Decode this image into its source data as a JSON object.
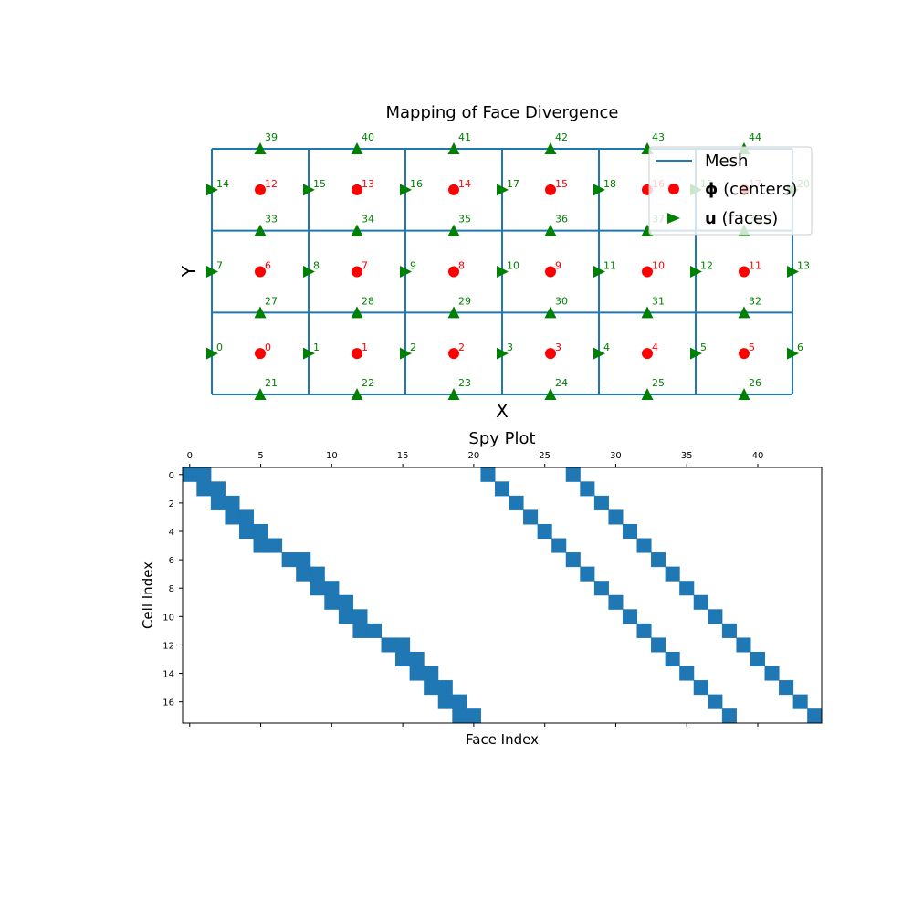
{
  "chart_data": [
    {
      "type": "scatter",
      "title": "Mapping of Face Divergence",
      "xlabel": "X",
      "ylabel": "Y",
      "mesh": {
        "cols": 6,
        "rows": 3
      },
      "legend": {
        "placement": "top-right",
        "entries": [
          {
            "label": "Mesh",
            "bold": "",
            "rest": "Mesh",
            "marker": "line"
          },
          {
            "label": "ϕ (centers)",
            "bold": "ϕ",
            "rest": " (centers)",
            "marker": "circle"
          },
          {
            "label": "u (faces)",
            "bold": "u",
            "rest": " (faces)",
            "marker": "triangle-right"
          }
        ]
      },
      "series": [
        {
          "name": "ϕ (centers)",
          "marker": "circle",
          "points": [
            {
              "x": 0.5,
              "y": 0.5,
              "label": "0"
            },
            {
              "x": 1.5,
              "y": 0.5,
              "label": "1"
            },
            {
              "x": 2.5,
              "y": 0.5,
              "label": "2"
            },
            {
              "x": 3.5,
              "y": 0.5,
              "label": "3"
            },
            {
              "x": 4.5,
              "y": 0.5,
              "label": "4"
            },
            {
              "x": 5.5,
              "y": 0.5,
              "label": "5"
            },
            {
              "x": 0.5,
              "y": 1.5,
              "label": "6"
            },
            {
              "x": 1.5,
              "y": 1.5,
              "label": "7"
            },
            {
              "x": 2.5,
              "y": 1.5,
              "label": "8"
            },
            {
              "x": 3.5,
              "y": 1.5,
              "label": "9"
            },
            {
              "x": 4.5,
              "y": 1.5,
              "label": "10"
            },
            {
              "x": 5.5,
              "y": 1.5,
              "label": "11"
            },
            {
              "x": 0.5,
              "y": 2.5,
              "label": "12"
            },
            {
              "x": 1.5,
              "y": 2.5,
              "label": "13"
            },
            {
              "x": 2.5,
              "y": 2.5,
              "label": "14"
            },
            {
              "x": 3.5,
              "y": 2.5,
              "label": "15"
            },
            {
              "x": 4.5,
              "y": 2.5,
              "label": "16"
            },
            {
              "x": 5.5,
              "y": 2.5,
              "label": "17"
            }
          ]
        },
        {
          "name": "u (faces)",
          "marker": "triangle-right",
          "points": [
            {
              "x": 0,
              "y": 0.5,
              "label": "0"
            },
            {
              "x": 1,
              "y": 0.5,
              "label": "1"
            },
            {
              "x": 2,
              "y": 0.5,
              "label": "2"
            },
            {
              "x": 3,
              "y": 0.5,
              "label": "3"
            },
            {
              "x": 4,
              "y": 0.5,
              "label": "4"
            },
            {
              "x": 5,
              "y": 0.5,
              "label": "5"
            },
            {
              "x": 6,
              "y": 0.5,
              "label": "6"
            },
            {
              "x": 0,
              "y": 1.5,
              "label": "7"
            },
            {
              "x": 1,
              "y": 1.5,
              "label": "8"
            },
            {
              "x": 2,
              "y": 1.5,
              "label": "9"
            },
            {
              "x": 3,
              "y": 1.5,
              "label": "10"
            },
            {
              "x": 4,
              "y": 1.5,
              "label": "11"
            },
            {
              "x": 5,
              "y": 1.5,
              "label": "12"
            },
            {
              "x": 6,
              "y": 1.5,
              "label": "13"
            },
            {
              "x": 0,
              "y": 2.5,
              "label": "14"
            },
            {
              "x": 1,
              "y": 2.5,
              "label": "15"
            },
            {
              "x": 2,
              "y": 2.5,
              "label": "16"
            },
            {
              "x": 3,
              "y": 2.5,
              "label": "17"
            },
            {
              "x": 4,
              "y": 2.5,
              "label": "18"
            },
            {
              "x": 5,
              "y": 2.5,
              "label": "19"
            },
            {
              "x": 6,
              "y": 2.5,
              "label": "20"
            }
          ]
        },
        {
          "name": "u (faces) vertical",
          "marker": "triangle-up",
          "points": [
            {
              "x": 0.5,
              "y": 0,
              "label": "21"
            },
            {
              "x": 1.5,
              "y": 0,
              "label": "22"
            },
            {
              "x": 2.5,
              "y": 0,
              "label": "23"
            },
            {
              "x": 3.5,
              "y": 0,
              "label": "24"
            },
            {
              "x": 4.5,
              "y": 0,
              "label": "25"
            },
            {
              "x": 5.5,
              "y": 0,
              "label": "26"
            },
            {
              "x": 0.5,
              "y": 1,
              "label": "27"
            },
            {
              "x": 1.5,
              "y": 1,
              "label": "28"
            },
            {
              "x": 2.5,
              "y": 1,
              "label": "29"
            },
            {
              "x": 3.5,
              "y": 1,
              "label": "30"
            },
            {
              "x": 4.5,
              "y": 1,
              "label": "31"
            },
            {
              "x": 5.5,
              "y": 1,
              "label": "32"
            },
            {
              "x": 0.5,
              "y": 2,
              "label": "33"
            },
            {
              "x": 1.5,
              "y": 2,
              "label": "34"
            },
            {
              "x": 2.5,
              "y": 2,
              "label": "35"
            },
            {
              "x": 3.5,
              "y": 2,
              "label": "36"
            },
            {
              "x": 4.5,
              "y": 2,
              "label": "37"
            },
            {
              "x": 5.5,
              "y": 2,
              "label": "38"
            },
            {
              "x": 0.5,
              "y": 3,
              "label": "39"
            },
            {
              "x": 1.5,
              "y": 3,
              "label": "40"
            },
            {
              "x": 2.5,
              "y": 3,
              "label": "41"
            },
            {
              "x": 3.5,
              "y": 3,
              "label": "42"
            },
            {
              "x": 4.5,
              "y": 3,
              "label": "43"
            },
            {
              "x": 5.5,
              "y": 3,
              "label": "44"
            }
          ]
        }
      ],
      "colors": {
        "mesh": "#1f77b4",
        "centers": "#ff0000",
        "faces": "#008000"
      }
    },
    {
      "type": "heatmap",
      "title": "Spy Plot",
      "xlabel": "Face Index",
      "ylabel": "Cell Index",
      "xlim": [
        -0.5,
        44.5
      ],
      "ylim": [
        17.5,
        -0.5
      ],
      "xticks": [
        0,
        5,
        10,
        15,
        20,
        25,
        30,
        35,
        40
      ],
      "yticks": [
        0,
        2,
        4,
        6,
        8,
        10,
        12,
        14,
        16
      ],
      "color": "#1f77b4",
      "nonzeros": [
        [
          0,
          0
        ],
        [
          0,
          1
        ],
        [
          0,
          21
        ],
        [
          0,
          27
        ],
        [
          1,
          1
        ],
        [
          1,
          2
        ],
        [
          1,
          22
        ],
        [
          1,
          28
        ],
        [
          2,
          2
        ],
        [
          2,
          3
        ],
        [
          2,
          23
        ],
        [
          2,
          29
        ],
        [
          3,
          3
        ],
        [
          3,
          4
        ],
        [
          3,
          24
        ],
        [
          3,
          30
        ],
        [
          4,
          4
        ],
        [
          4,
          5
        ],
        [
          4,
          25
        ],
        [
          4,
          31
        ],
        [
          5,
          5
        ],
        [
          5,
          6
        ],
        [
          5,
          26
        ],
        [
          5,
          32
        ],
        [
          6,
          7
        ],
        [
          6,
          8
        ],
        [
          6,
          27
        ],
        [
          6,
          33
        ],
        [
          7,
          8
        ],
        [
          7,
          9
        ],
        [
          7,
          28
        ],
        [
          7,
          34
        ],
        [
          8,
          9
        ],
        [
          8,
          10
        ],
        [
          8,
          29
        ],
        [
          8,
          35
        ],
        [
          9,
          10
        ],
        [
          9,
          11
        ],
        [
          9,
          30
        ],
        [
          9,
          36
        ],
        [
          10,
          11
        ],
        [
          10,
          12
        ],
        [
          10,
          31
        ],
        [
          10,
          37
        ],
        [
          11,
          12
        ],
        [
          11,
          13
        ],
        [
          11,
          32
        ],
        [
          11,
          38
        ],
        [
          12,
          14
        ],
        [
          12,
          15
        ],
        [
          12,
          33
        ],
        [
          12,
          39
        ],
        [
          13,
          15
        ],
        [
          13,
          16
        ],
        [
          13,
          34
        ],
        [
          13,
          40
        ],
        [
          14,
          16
        ],
        [
          14,
          17
        ],
        [
          14,
          35
        ],
        [
          14,
          41
        ],
        [
          15,
          17
        ],
        [
          15,
          18
        ],
        [
          15,
          36
        ],
        [
          15,
          42
        ],
        [
          16,
          18
        ],
        [
          16,
          19
        ],
        [
          16,
          37
        ],
        [
          16,
          43
        ],
        [
          17,
          19
        ],
        [
          17,
          20
        ],
        [
          17,
          38
        ],
        [
          17,
          44
        ]
      ]
    }
  ]
}
